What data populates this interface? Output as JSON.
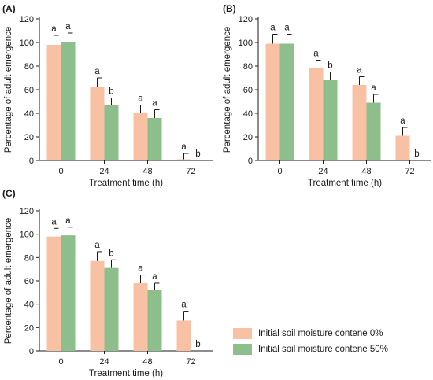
{
  "colors": {
    "series0": "#f9c1a4",
    "series1": "#8dbf8d",
    "error_bar": "#1a1a1a",
    "text": "#1a1a1a"
  },
  "legend": [
    {
      "label": "Initial soil moisture contene 0%",
      "color": "#f9c1a4"
    },
    {
      "label": "Initial soil moisture contene 50%",
      "color": "#8dbf8d"
    }
  ],
  "chart_data": [
    {
      "panel": "(A)",
      "type": "bar",
      "xlabel": "Treatment time (h)",
      "ylabel": "Percentage of adult emergence",
      "categories": [
        "0",
        "24",
        "48",
        "72"
      ],
      "ylim": [
        0,
        120
      ],
      "yticks": [
        "0",
        "20",
        "40",
        "60",
        "80",
        "100",
        "120"
      ],
      "grid": false,
      "series": [
        {
          "values": [
            98,
            62,
            40,
            1
          ],
          "errors": [
            8,
            8,
            7,
            5
          ],
          "letters": [
            "a",
            "a",
            "a",
            "a"
          ]
        },
        {
          "values": [
            100,
            47,
            36,
            0
          ],
          "errors": [
            8,
            6,
            7,
            0
          ],
          "letters": [
            "a",
            "b",
            "a",
            "b"
          ]
        }
      ]
    },
    {
      "panel": "(B)",
      "type": "bar",
      "xlabel": "Treatment time (h)",
      "ylabel": "Percentage of adult emergence",
      "categories": [
        "0",
        "24",
        "48",
        "72"
      ],
      "ylim": [
        0,
        120
      ],
      "yticks": [
        "0",
        "20",
        "40",
        "60",
        "80",
        "100",
        "120"
      ],
      "grid": false,
      "series": [
        {
          "values": [
            99,
            78,
            64,
            21
          ],
          "errors": [
            8,
            7,
            7,
            7
          ],
          "letters": [
            "a",
            "a",
            "a",
            "a"
          ]
        },
        {
          "values": [
            99,
            68,
            49,
            0
          ],
          "errors": [
            8,
            7,
            7,
            0
          ],
          "letters": [
            "a",
            "b",
            "a",
            "b"
          ]
        }
      ]
    },
    {
      "panel": "(C)",
      "type": "bar",
      "xlabel": "Treatment time (h)",
      "ylabel": "Percentage of adult emergence",
      "categories": [
        "0",
        "24",
        "48",
        "72"
      ],
      "ylim": [
        0,
        120
      ],
      "yticks": [
        "0",
        "20",
        "40",
        "60",
        "80",
        "100",
        "120"
      ],
      "grid": false,
      "series": [
        {
          "values": [
            98,
            77,
            58,
            26
          ],
          "errors": [
            7,
            8,
            7,
            8
          ],
          "letters": [
            "a",
            "a",
            "a",
            "a"
          ]
        },
        {
          "values": [
            99,
            71,
            52,
            0
          ],
          "errors": [
            7,
            7,
            6,
            0
          ],
          "letters": [
            "a",
            "b",
            "a",
            "b"
          ]
        }
      ]
    }
  ]
}
